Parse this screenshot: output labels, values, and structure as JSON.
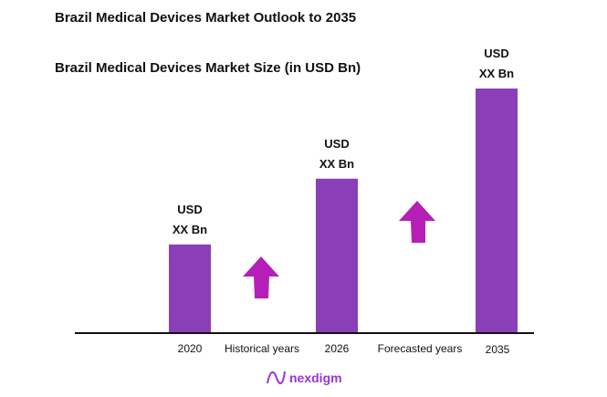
{
  "chart_data": {
    "type": "bar",
    "title": "Brazil Medical Devices Market Outlook to 2035",
    "subtitle": "Brazil Medical Devices Market Size (in USD Bn)",
    "categories": [
      "2020",
      "2026",
      "2035"
    ],
    "values": [
      36,
      63,
      100
    ],
    "value_note_units": "relative bar height, % of tallest bar (no axis printed)",
    "data_labels": [
      [
        "USD",
        "XX Bn"
      ],
      [
        "USD",
        "XX Bn"
      ],
      [
        "USD",
        "XX Bn"
      ]
    ],
    "period_labels": [
      "Historical years",
      "Forecasted years"
    ],
    "grid": false,
    "legend": "none",
    "bar_color": "#8a3fb8",
    "arrow_color": "#b51fb8"
  },
  "logo": {
    "text": "nexdigm",
    "color": "#9a33d6"
  }
}
